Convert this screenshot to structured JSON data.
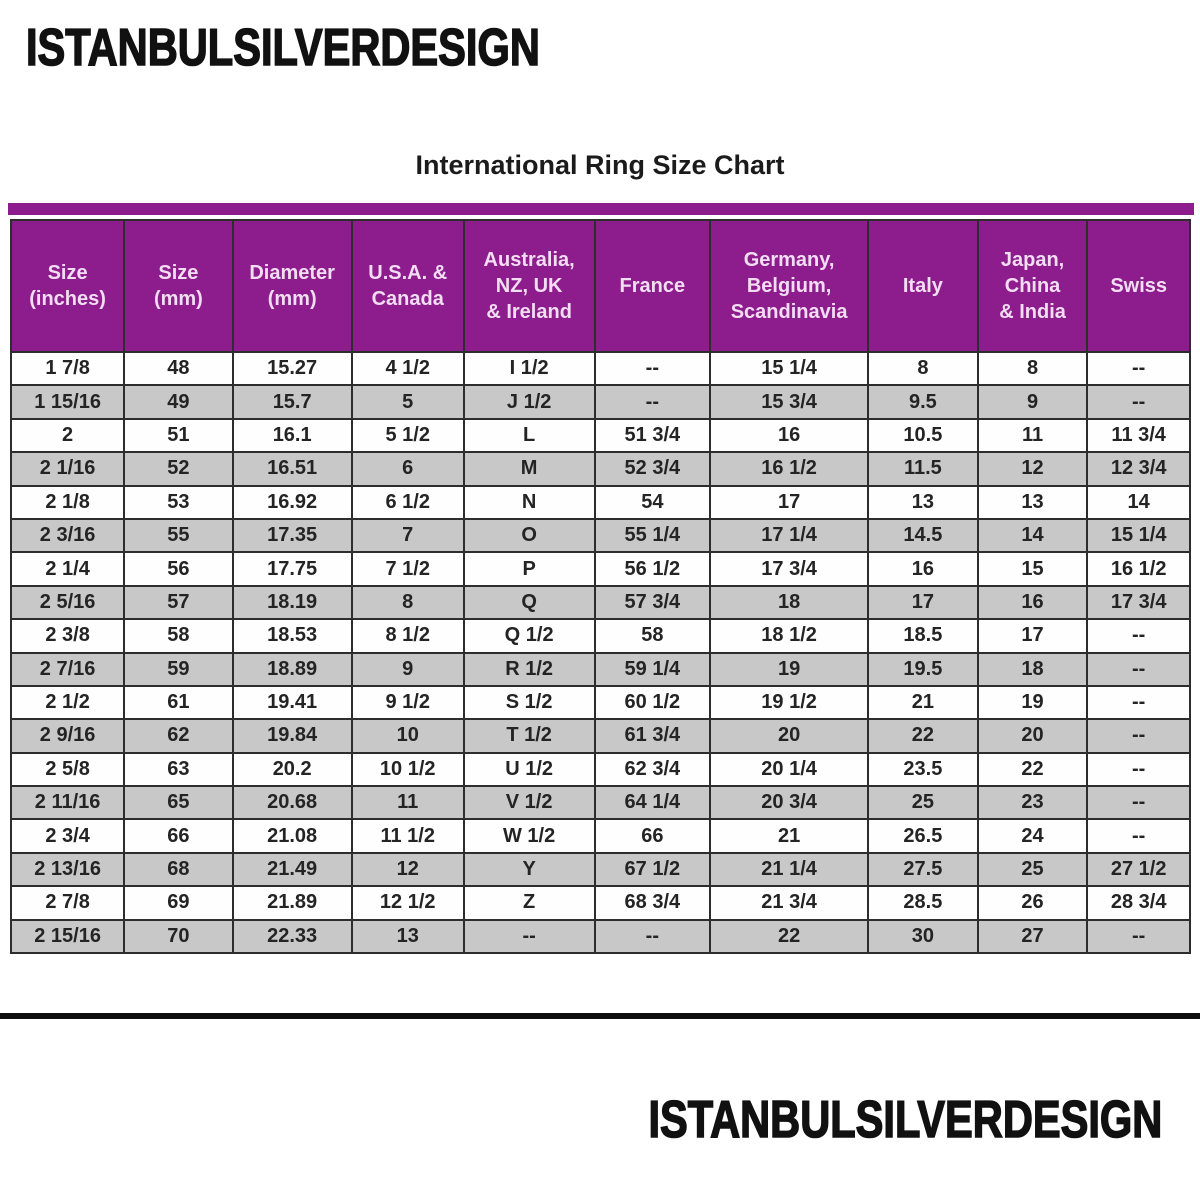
{
  "brand": {
    "top_logo": "ISTANBULSILVERDESIGN",
    "bottom_logo": "ISTANBULSILVERDESIGN"
  },
  "title": "International Ring Size Chart",
  "colors": {
    "header_bg": "#8D1C8D",
    "header_text": "#F3DDF3",
    "row_bg": "#FEFEFE",
    "row_alt_bg": "#C8C8C8",
    "border": "#2D2D2D",
    "divider": "#0E0E0E"
  },
  "chart_data": {
    "type": "table",
    "title": "International Ring Size Chart",
    "columns": [
      "Size\n(inches)",
      "Size\n(mm)",
      "Diameter\n(mm)",
      "U.S.A. &\nCanada",
      "Australia,\nNZ, UK\n& Ireland",
      "France",
      "Germany,\nBelgium,\nScandinavia",
      "Italy",
      "Japan,\nChina\n& India",
      "Swiss"
    ],
    "col_widths_pct": [
      9.6,
      9.2,
      10.1,
      9.5,
      11.1,
      9.8,
      13.4,
      9.3,
      9.3,
      8.7
    ],
    "rows": [
      [
        "1 7/8",
        "48",
        "15.27",
        "4 1/2",
        "I 1/2",
        "--",
        "15 1/4",
        "8",
        "8",
        "--"
      ],
      [
        "1 15/16",
        "49",
        "15.7",
        "5",
        "J 1/2",
        "--",
        "15 3/4",
        "9.5",
        "9",
        "--"
      ],
      [
        "2",
        "51",
        "16.1",
        "5 1/2",
        "L",
        "51 3/4",
        "16",
        "10.5",
        "11",
        "11 3/4"
      ],
      [
        "2 1/16",
        "52",
        "16.51",
        "6",
        "M",
        "52 3/4",
        "16 1/2",
        "11.5",
        "12",
        "12 3/4"
      ],
      [
        "2 1/8",
        "53",
        "16.92",
        "6 1/2",
        "N",
        "54",
        "17",
        "13",
        "13",
        "14"
      ],
      [
        "2 3/16",
        "55",
        "17.35",
        "7",
        "O",
        "55 1/4",
        "17 1/4",
        "14.5",
        "14",
        "15 1/4"
      ],
      [
        "2 1/4",
        "56",
        "17.75",
        "7 1/2",
        "P",
        "56 1/2",
        "17 3/4",
        "16",
        "15",
        "16 1/2"
      ],
      [
        "2 5/16",
        "57",
        "18.19",
        "8",
        "Q",
        "57 3/4",
        "18",
        "17",
        "16",
        "17 3/4"
      ],
      [
        "2 3/8",
        "58",
        "18.53",
        "8 1/2",
        "Q 1/2",
        "58",
        "18 1/2",
        "18.5",
        "17",
        "--"
      ],
      [
        "2 7/16",
        "59",
        "18.89",
        "9",
        "R 1/2",
        "59 1/4",
        "19",
        "19.5",
        "18",
        "--"
      ],
      [
        "2 1/2",
        "61",
        "19.41",
        "9 1/2",
        "S 1/2",
        "60 1/2",
        "19 1/2",
        "21",
        "19",
        "--"
      ],
      [
        "2 9/16",
        "62",
        "19.84",
        "10",
        "T 1/2",
        "61 3/4",
        "20",
        "22",
        "20",
        "--"
      ],
      [
        "2 5/8",
        "63",
        "20.2",
        "10 1/2",
        "U 1/2",
        "62 3/4",
        "20 1/4",
        "23.5",
        "22",
        "--"
      ],
      [
        "2 11/16",
        "65",
        "20.68",
        "11",
        "V 1/2",
        "64 1/4",
        "20 3/4",
        "25",
        "23",
        "--"
      ],
      [
        "2 3/4",
        "66",
        "21.08",
        "11 1/2",
        "W 1/2",
        "66",
        "21",
        "26.5",
        "24",
        "--"
      ],
      [
        "2 13/16",
        "68",
        "21.49",
        "12",
        "Y",
        "67 1/2",
        "21 1/4",
        "27.5",
        "25",
        "27 1/2"
      ],
      [
        "2 7/8",
        "69",
        "21.89",
        "12 1/2",
        "Z",
        "68 3/4",
        "21 3/4",
        "28.5",
        "26",
        "28 3/4"
      ],
      [
        "2 15/16",
        "70",
        "22.33",
        "13",
        "--",
        "--",
        "22",
        "30",
        "27",
        "--"
      ]
    ]
  }
}
